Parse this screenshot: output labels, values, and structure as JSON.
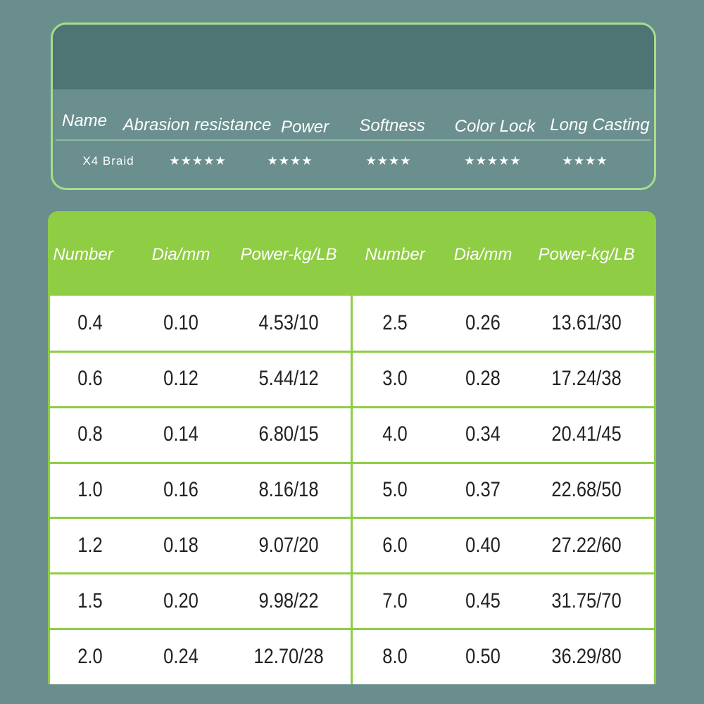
{
  "top_table": {
    "columns": [
      "Name",
      "Abrasion resistance",
      "Power",
      "Softness",
      "Color Lock",
      "Long Casting"
    ],
    "rows": [
      [
        "X4 Braid",
        "★★★★★",
        "★★★★",
        "★★★★",
        "★★★★★",
        "★★★★"
      ]
    ]
  },
  "spec_table": {
    "columns": [
      "Number",
      "Dia/mm",
      "Power-kg/LB",
      "Number",
      "Dia/mm",
      "Power-kg/LB"
    ],
    "rows": [
      [
        "0.4",
        "0.10",
        "4.53/10",
        "2.5",
        "0.26",
        "13.61/30"
      ],
      [
        "0.6",
        "0.12",
        "5.44/12",
        "3.0",
        "0.28",
        "17.24/38"
      ],
      [
        "0.8",
        "0.14",
        "6.80/15",
        "4.0",
        "0.34",
        "20.41/45"
      ],
      [
        "1.0",
        "0.16",
        "8.16/18",
        "5.0",
        "0.37",
        "22.68/50"
      ],
      [
        "1.2",
        "0.18",
        "9.07/20",
        "6.0",
        "0.40",
        "27.22/60"
      ],
      [
        "1.5",
        "0.20",
        "9.98/22",
        "7.0",
        "0.45",
        "31.75/70"
      ],
      [
        "2.0",
        "0.24",
        "12.70/28",
        "8.0",
        "0.50",
        "36.29/80"
      ]
    ]
  }
}
